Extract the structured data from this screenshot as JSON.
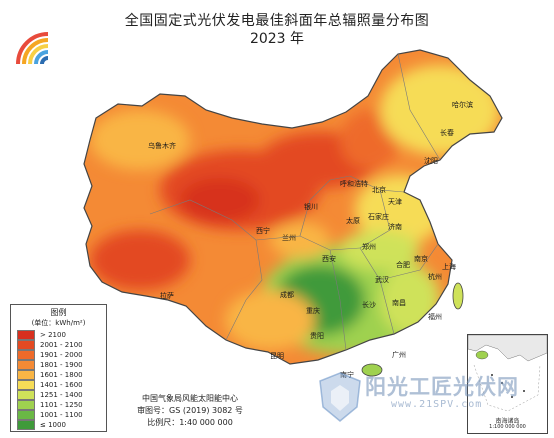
{
  "header": {
    "title": "全国固定式光伏发电最佳斜面年总辐照量分布图",
    "subtitle": "2023 年"
  },
  "legend": {
    "title": "图例",
    "unit": "(单位：kWh/m²)",
    "items": [
      {
        "label": "> 2100",
        "color": "#d7301f"
      },
      {
        "label": "2001 - 2100",
        "color": "#e34a22"
      },
      {
        "label": "1901 - 2000",
        "color": "#ee6a2a"
      },
      {
        "label": "1801 - 1900",
        "color": "#f48a35"
      },
      {
        "label": "1601 - 1800",
        "color": "#f9b545"
      },
      {
        "label": "1401 - 1600",
        "color": "#f6dc57"
      },
      {
        "label": "1251 - 1400",
        "color": "#cfe25a"
      },
      {
        "label": "1101 - 1250",
        "color": "#9fd14f"
      },
      {
        "label": "1001 - 1100",
        "color": "#6ab845"
      },
      {
        "label": "≤ 1000",
        "color": "#3f9a3a"
      }
    ]
  },
  "credits": {
    "agency": "中国气象局风能太阳能中心",
    "map_number": "审图号：GS (2019) 3082 号",
    "scale": "比例尺：1:40 000 000"
  },
  "inset": {
    "label": "南海诸岛",
    "scale": "1:100 000 000"
  },
  "cities": [
    {
      "name": "乌鲁木齐"
    },
    {
      "name": "拉萨"
    },
    {
      "name": "西宁"
    },
    {
      "name": "兰州"
    },
    {
      "name": "银川"
    },
    {
      "name": "呼和浩特"
    },
    {
      "name": "北京"
    },
    {
      "name": "天津"
    },
    {
      "name": "石家庄"
    },
    {
      "name": "太原"
    },
    {
      "name": "济南"
    },
    {
      "name": "郑州"
    },
    {
      "name": "西安"
    },
    {
      "name": "成都"
    },
    {
      "name": "重庆"
    },
    {
      "name": "贵阳"
    },
    {
      "name": "昆明"
    },
    {
      "name": "南宁"
    },
    {
      "name": "广州"
    },
    {
      "name": "武汉"
    },
    {
      "name": "长沙"
    },
    {
      "name": "南昌"
    },
    {
      "name": "福州"
    },
    {
      "name": "杭州"
    },
    {
      "name": "合肥"
    },
    {
      "name": "南京"
    },
    {
      "name": "上海"
    },
    {
      "name": "沈阳"
    },
    {
      "name": "长春"
    },
    {
      "name": "哈尔滨"
    }
  ],
  "watermark": {
    "text": "阳光工匠光伏网",
    "url": "www.21SPV.com"
  }
}
